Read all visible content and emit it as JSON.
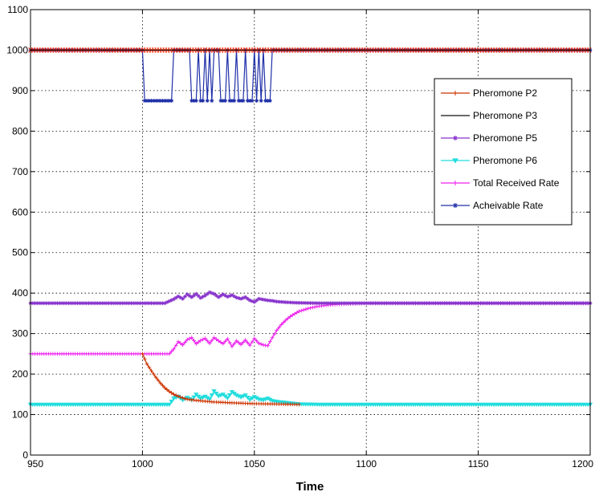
{
  "chart_data": {
    "type": "line",
    "xlabel": "Time",
    "ylabel": "",
    "title": "",
    "xlim": [
      950,
      1200
    ],
    "ylim": [
      0,
      1100
    ],
    "grid": true,
    "legend_position": "inside-upper-right",
    "xticks": [
      "950",
      "1000",
      "1050",
      "1100",
      "1150",
      "1200"
    ],
    "yticks": [
      "0",
      "100",
      "200",
      "300",
      "400",
      "500",
      "600",
      "700",
      "800",
      "900",
      "1000",
      "1100"
    ],
    "series": [
      {
        "name": "Pheromone P2",
        "color": "#cc3300",
        "marker": "plus",
        "points": [
          [
            1000,
            250
          ],
          [
            1002,
            225
          ],
          [
            1004,
            208
          ],
          [
            1006,
            192
          ],
          [
            1008,
            178
          ],
          [
            1010,
            166
          ],
          [
            1012,
            157
          ],
          [
            1014,
            150
          ],
          [
            1016,
            145
          ],
          [
            1018,
            141
          ],
          [
            1020,
            138
          ],
          [
            1024,
            135
          ],
          [
            1028,
            133
          ],
          [
            1032,
            131
          ],
          [
            1036,
            130
          ],
          [
            1040,
            129
          ],
          [
            1045,
            128
          ],
          [
            1050,
            127
          ],
          [
            1060,
            126
          ],
          [
            1070,
            125
          ]
        ]
      },
      {
        "name": "Pheromone P3",
        "color": "#111111",
        "marker": "none",
        "points": [
          [
            950,
            1000
          ],
          [
            1200,
            1000
          ]
        ]
      },
      {
        "name": "Pheromone P5",
        "color": "#8833cc",
        "marker": "star",
        "points": [
          [
            950,
            375
          ],
          [
            1010,
            375
          ],
          [
            1014,
            385
          ],
          [
            1016,
            392
          ],
          [
            1018,
            386
          ],
          [
            1020,
            397
          ],
          [
            1022,
            390
          ],
          [
            1024,
            398
          ],
          [
            1026,
            388
          ],
          [
            1028,
            394
          ],
          [
            1030,
            402
          ],
          [
            1032,
            398
          ],
          [
            1034,
            390
          ],
          [
            1036,
            397
          ],
          [
            1038,
            391
          ],
          [
            1040,
            395
          ],
          [
            1042,
            389
          ],
          [
            1044,
            386
          ],
          [
            1046,
            390
          ],
          [
            1048,
            382
          ],
          [
            1050,
            378
          ],
          [
            1052,
            386
          ],
          [
            1054,
            384
          ],
          [
            1056,
            382
          ],
          [
            1058,
            381
          ],
          [
            1060,
            379
          ],
          [
            1065,
            377
          ],
          [
            1070,
            376
          ],
          [
            1080,
            375
          ],
          [
            1200,
            375
          ]
        ]
      },
      {
        "name": "Pheromone P6",
        "color": "#22dddd",
        "marker": "triangle-down",
        "points": [
          [
            950,
            125
          ],
          [
            1012,
            125
          ],
          [
            1014,
            140
          ],
          [
            1016,
            145
          ],
          [
            1018,
            136
          ],
          [
            1020,
            142
          ],
          [
            1022,
            136
          ],
          [
            1024,
            150
          ],
          [
            1026,
            140
          ],
          [
            1028,
            145
          ],
          [
            1030,
            138
          ],
          [
            1032,
            158
          ],
          [
            1034,
            146
          ],
          [
            1036,
            150
          ],
          [
            1038,
            141
          ],
          [
            1040,
            156
          ],
          [
            1042,
            148
          ],
          [
            1044,
            143
          ],
          [
            1046,
            148
          ],
          [
            1048,
            137
          ],
          [
            1050,
            144
          ],
          [
            1052,
            138
          ],
          [
            1054,
            136
          ],
          [
            1056,
            140
          ],
          [
            1058,
            134
          ],
          [
            1060,
            132
          ],
          [
            1065,
            129
          ],
          [
            1070,
            126
          ],
          [
            1080,
            125
          ],
          [
            1200,
            125
          ]
        ]
      },
      {
        "name": "Total Received Rate",
        "color": "#ee22ee",
        "marker": "plus",
        "points": [
          [
            950,
            250
          ],
          [
            1012,
            250
          ],
          [
            1014,
            262
          ],
          [
            1016,
            280
          ],
          [
            1018,
            272
          ],
          [
            1020,
            285
          ],
          [
            1022,
            290
          ],
          [
            1024,
            275
          ],
          [
            1026,
            283
          ],
          [
            1028,
            288
          ],
          [
            1030,
            276
          ],
          [
            1032,
            290
          ],
          [
            1034,
            282
          ],
          [
            1036,
            275
          ],
          [
            1038,
            287
          ],
          [
            1040,
            268
          ],
          [
            1042,
            282
          ],
          [
            1044,
            273
          ],
          [
            1046,
            284
          ],
          [
            1048,
            271
          ],
          [
            1050,
            288
          ],
          [
            1052,
            276
          ],
          [
            1054,
            272
          ],
          [
            1056,
            270
          ],
          [
            1058,
            290
          ],
          [
            1060,
            308
          ],
          [
            1062,
            322
          ],
          [
            1064,
            333
          ],
          [
            1066,
            342
          ],
          [
            1068,
            349
          ],
          [
            1070,
            355
          ],
          [
            1074,
            362
          ],
          [
            1078,
            367
          ],
          [
            1082,
            370
          ],
          [
            1086,
            372
          ],
          [
            1090,
            373
          ],
          [
            1095,
            374
          ],
          [
            1100,
            375
          ],
          [
            1200,
            375
          ]
        ]
      },
      {
        "name": "Acheivable Rate",
        "color": "#1f2fa8",
        "marker": "asterisk",
        "points": [
          [
            950,
            1000
          ],
          [
            1000,
            1000
          ],
          [
            1001,
            875
          ],
          [
            1013,
            875
          ],
          [
            1014,
            1000
          ],
          [
            1021,
            1000
          ],
          [
            1022,
            875
          ],
          [
            1024,
            875
          ],
          [
            1025,
            1000
          ],
          [
            1026,
            875
          ],
          [
            1027,
            875
          ],
          [
            1028,
            1000
          ],
          [
            1029,
            875
          ],
          [
            1030,
            1000
          ],
          [
            1031,
            875
          ],
          [
            1032,
            1000
          ],
          [
            1034,
            1000
          ],
          [
            1035,
            875
          ],
          [
            1037,
            875
          ],
          [
            1038,
            1000
          ],
          [
            1039,
            875
          ],
          [
            1041,
            875
          ],
          [
            1042,
            1000
          ],
          [
            1043,
            875
          ],
          [
            1045,
            875
          ],
          [
            1046,
            1000
          ],
          [
            1047,
            875
          ],
          [
            1049,
            875
          ],
          [
            1050,
            1000
          ],
          [
            1051,
            875
          ],
          [
            1052,
            1000
          ],
          [
            1053,
            875
          ],
          [
            1054,
            1000
          ],
          [
            1055,
            875
          ],
          [
            1057,
            875
          ],
          [
            1058,
            1000
          ],
          [
            1200,
            1000
          ]
        ]
      }
    ]
  }
}
